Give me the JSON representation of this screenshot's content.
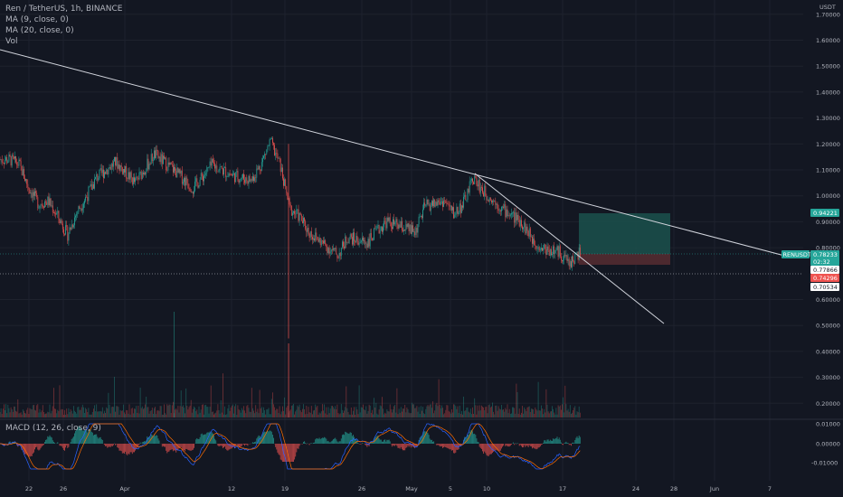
{
  "legend": {
    "symbol": "Ren / TetherUS, 1h, BINANCE",
    "ma9": "MA (9, close, 0)",
    "ma20": "MA (20, close, 0)",
    "vol": "Vol"
  },
  "macd_legend": "MACD (12, 26, close, 9)",
  "price_axis": {
    "currency": "USDT",
    "labels": [
      "1.70000",
      "1.60000",
      "1.50000",
      "1.40000",
      "1.30000",
      "1.20000",
      "1.10000",
      "1.00000",
      "0.90000",
      "0.80000",
      "0.60000",
      "0.50000",
      "0.40000",
      "0.30000",
      "0.20000"
    ]
  },
  "macd_axis": {
    "labels": [
      "0.01000",
      "0.00000",
      "-0.01000"
    ]
  },
  "time_axis": {
    "labels": [
      "22",
      "26",
      "Apr",
      "12",
      "19",
      "26",
      "May",
      "5",
      "10",
      "17",
      "24",
      "28",
      "Jun",
      "7"
    ]
  },
  "price_tags": {
    "target": "0.94221",
    "symbol_tag": "RENUSDT",
    "current": "0.78233",
    "countdown": "02:32",
    "ma_value": "0.77866",
    "stop": "0.74296",
    "low": "0.70534"
  },
  "colors": {
    "background": "#131722",
    "up": "#26a69a",
    "down": "#ef5350",
    "macd_line": "#2962ff",
    "signal_line": "#ff6d00",
    "trendline": "#d1d4dc",
    "target_zone": "#1e5d55",
    "stop_zone": "#5b2b30"
  },
  "chart_data": {
    "type": "candlestick",
    "symbol": "Ren / TetherUS",
    "interval": "1h",
    "exchange": "BINANCE",
    "price_range": [
      0.1,
      1.8
    ],
    "key_levels": {
      "current": 0.78233,
      "target": 0.94221,
      "stop": 0.74296,
      "ma": 0.77866,
      "low": 0.70534
    },
    "price_path": [
      [
        "Mar 20",
        1.14
      ],
      [
        "Mar 21",
        1.12
      ],
      [
        "Mar 22",
        1.03
      ],
      [
        "Mar 23",
        0.97
      ],
      [
        "Mar 24",
        0.98
      ],
      [
        "Mar 25",
        0.92
      ],
      [
        "Mar 26",
        0.85
      ],
      [
        "Mar 27",
        0.94
      ],
      [
        "Mar 28",
        1.0
      ],
      [
        "Mar 29",
        1.07
      ],
      [
        "Mar 31",
        1.13
      ],
      [
        "Apr 2",
        1.05
      ],
      [
        "Apr 4",
        1.16
      ],
      [
        "Apr 6",
        1.1
      ],
      [
        "Apr 8",
        1.03
      ],
      [
        "Apr 10",
        1.12
      ],
      [
        "Apr 12",
        1.08
      ],
      [
        "Apr 14",
        1.06
      ],
      [
        "Apr 15",
        1.12
      ],
      [
        "Apr 16",
        1.21
      ],
      [
        "Apr 17",
        1.12
      ],
      [
        "Apr 18",
        0.95
      ],
      [
        "Apr 19",
        0.92
      ],
      [
        "Apr 20",
        0.86
      ],
      [
        "Apr 22",
        0.8
      ],
      [
        "Apr 23",
        0.77
      ],
      [
        "Apr 24",
        0.84
      ],
      [
        "Apr 26",
        0.82
      ],
      [
        "Apr 28",
        0.9
      ],
      [
        "May 1",
        0.86
      ],
      [
        "May 2",
        0.96
      ],
      [
        "May 4",
        0.98
      ],
      [
        "May 5",
        0.93
      ],
      [
        "May 6",
        0.97
      ],
      [
        "May 7",
        1.07
      ],
      [
        "May 8",
        1.02
      ],
      [
        "May 10",
        0.95
      ],
      [
        "May 12",
        0.9
      ],
      [
        "May 13",
        0.84
      ],
      [
        "May 14",
        0.8
      ],
      [
        "May 16",
        0.78
      ],
      [
        "May 17",
        0.74
      ],
      [
        "May 18",
        0.78
      ]
    ],
    "drawings": {
      "long_trendline": {
        "from": [
          "Mar 20",
          1.58
        ],
        "to": [
          "May 24",
          0.79
        ]
      },
      "short_trendline": {
        "from": [
          "May 7",
          1.09
        ],
        "to": [
          "May 21",
          0.52
        ]
      },
      "long_position": {
        "entry": 0.78233,
        "target": 0.94221,
        "stop": 0.74296
      }
    },
    "volume_panel": true,
    "macd": {
      "fast": 12,
      "slow": 26,
      "source": "close",
      "signal": 9,
      "range": [
        -0.02,
        0.01
      ]
    }
  }
}
